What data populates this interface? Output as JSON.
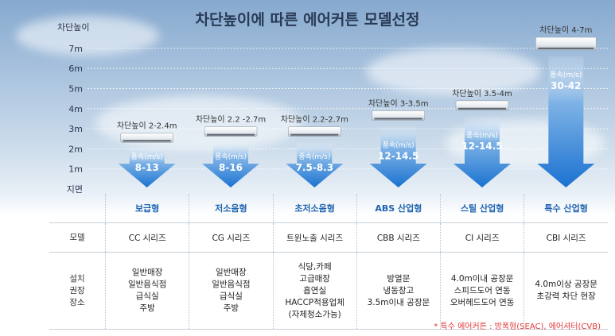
{
  "title": "차단높이에 따른 에어커튼 모델선정",
  "chart_data": {
    "type": "bar",
    "ylabel": "차단높이",
    "yticks": [
      "지면",
      "1m",
      "2m",
      "3m",
      "4m",
      "5m",
      "6m",
      "7m"
    ],
    "ylim": [
      0,
      7.5
    ],
    "speed_label": "풍속(m/s)",
    "categories": [
      "보급형",
      "저소음형",
      "초저소음형",
      "ABS 산업형",
      "스틸 산업형",
      "특수 산업형"
    ],
    "height_labels": [
      "차단높이 2-2.4m",
      "차단높이 2.2 -2.7m",
      "차단높이 2.2-2.7m",
      "차단높이 3-3.5m",
      "차단높이 3.5-4m",
      "차단높이 4-7m"
    ],
    "height_min": [
      2.0,
      2.2,
      2.2,
      3.0,
      3.5,
      4.0
    ],
    "height_max": [
      2.4,
      2.7,
      2.7,
      3.5,
      4.0,
      7.0
    ],
    "speeds": [
      "8-13",
      "8-16",
      "7.5-8.3",
      "12-14.5",
      "12-14.5",
      "30-42"
    ]
  },
  "table": {
    "model_label": "모델",
    "rec_label": [
      "설치",
      "권장",
      "장소"
    ],
    "models": [
      "CC 시리즈",
      "CG 시리즈",
      "트윈노출 시리즈",
      "CBB 시리즈",
      "CI 시리즈",
      "CBI 시리즈"
    ],
    "places": [
      [
        "일반매장",
        "일반음식점",
        "급식실",
        "주방"
      ],
      [
        "일반매장",
        "일반음식점",
        "급식실",
        "주방"
      ],
      [
        "식당,카페",
        "고급매장",
        "흡연실",
        "HACCP적용업체",
        "(자체청소가능)"
      ],
      [
        "방열문",
        "냉동창고",
        "3.5m이내 공장문"
      ],
      [
        "4.0m이내 공장문",
        "스피드도어 연동",
        "오버헤드도어 연동"
      ],
      [
        "4.0m이상 공장문",
        "초강력 차단 현장"
      ]
    ]
  },
  "footnote": "* 특수 에어커튼 : 방폭형(SEAC), 에어셔터(CVB)",
  "colors": {
    "arrow_top": "#e8f1fb",
    "arrow_bottom": "#1a72d1",
    "header": "#1f64b0",
    "footnote": "#e23a3a"
  }
}
